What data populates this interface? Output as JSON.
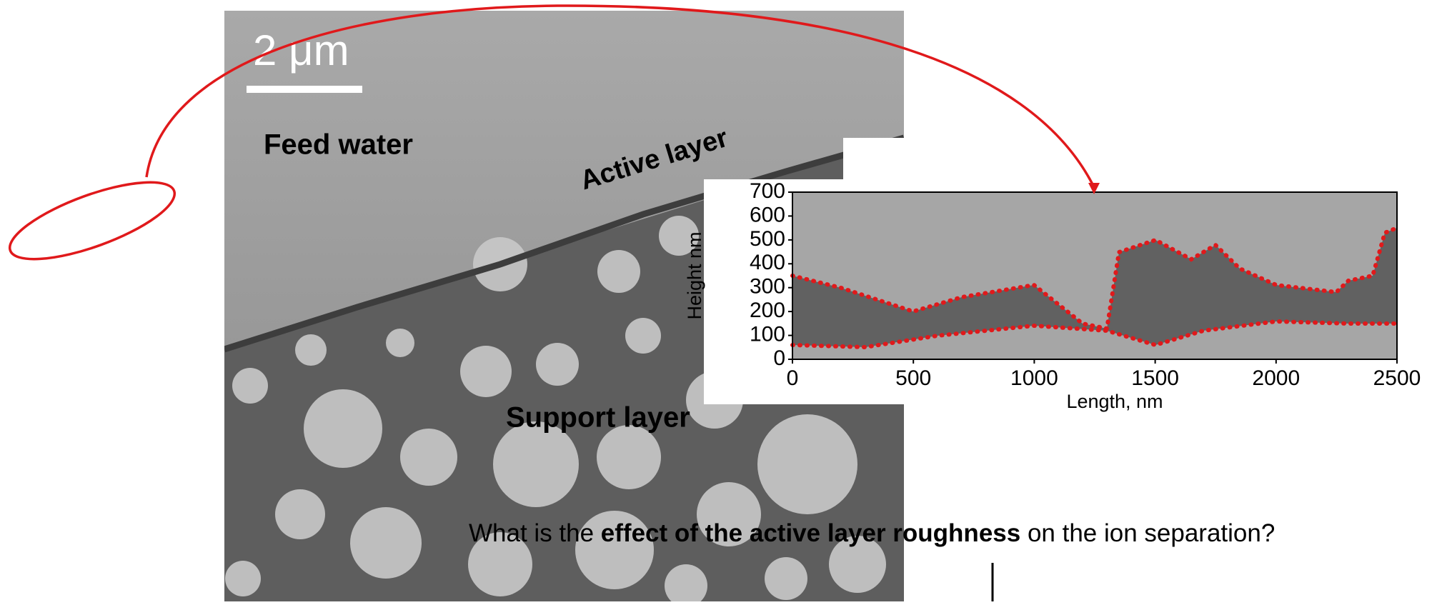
{
  "micrograph": {
    "scale_bar": "2 μm",
    "labels": {
      "feed": "Feed water",
      "active": "Active layer",
      "support": "Support layer"
    }
  },
  "profile": {
    "y_label": "Height  nm",
    "x_label": "Length,  nm",
    "yticks": [
      0,
      100,
      200,
      300,
      400,
      500,
      600,
      700
    ],
    "xticks": [
      0,
      500,
      1000,
      1500,
      2000,
      2500
    ]
  },
  "question": {
    "before": "What is the ",
    "emphasis": "effect of the active layer roughness",
    "after": " on the ion separation?"
  }
}
